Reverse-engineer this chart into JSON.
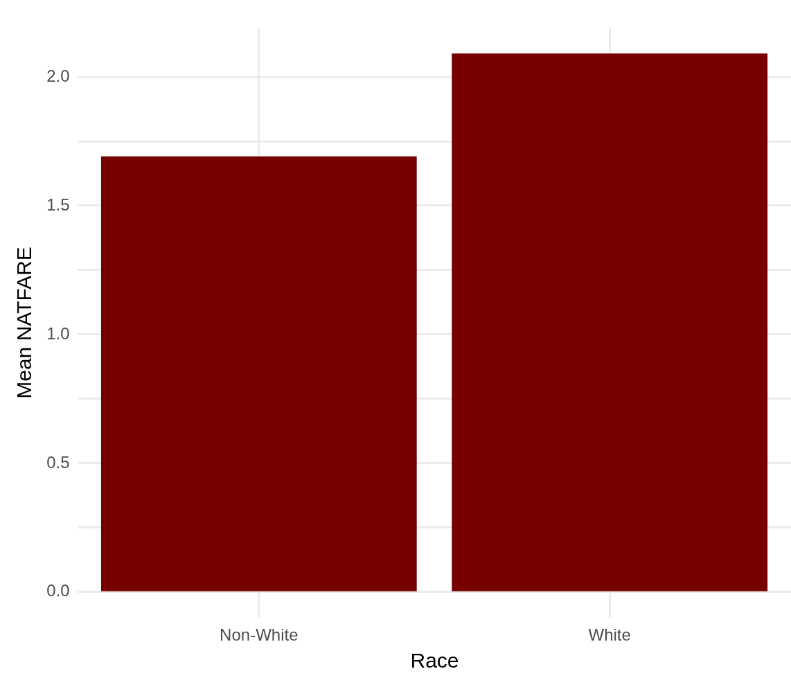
{
  "chart_data": {
    "type": "bar",
    "xlabel": "Race",
    "ylabel": "Mean NATFARE",
    "categories": [
      "Non-White",
      "White"
    ],
    "values": [
      1.69,
      2.09
    ],
    "color": "#760000",
    "ylim": [
      -0.1,
      2.19
    ],
    "yticks": [
      {
        "value": 0,
        "label": "0.0"
      },
      {
        "value": 0.25,
        "label": null
      },
      {
        "value": 0.5,
        "label": "0.5"
      },
      {
        "value": 0.75,
        "label": null
      },
      {
        "value": 1,
        "label": "1.0"
      },
      {
        "value": 1.25,
        "label": null
      },
      {
        "value": 1.5,
        "label": "1.5"
      },
      {
        "value": 1.75,
        "label": null
      },
      {
        "value": 2,
        "label": "2.0"
      }
    ],
    "grid": true
  }
}
